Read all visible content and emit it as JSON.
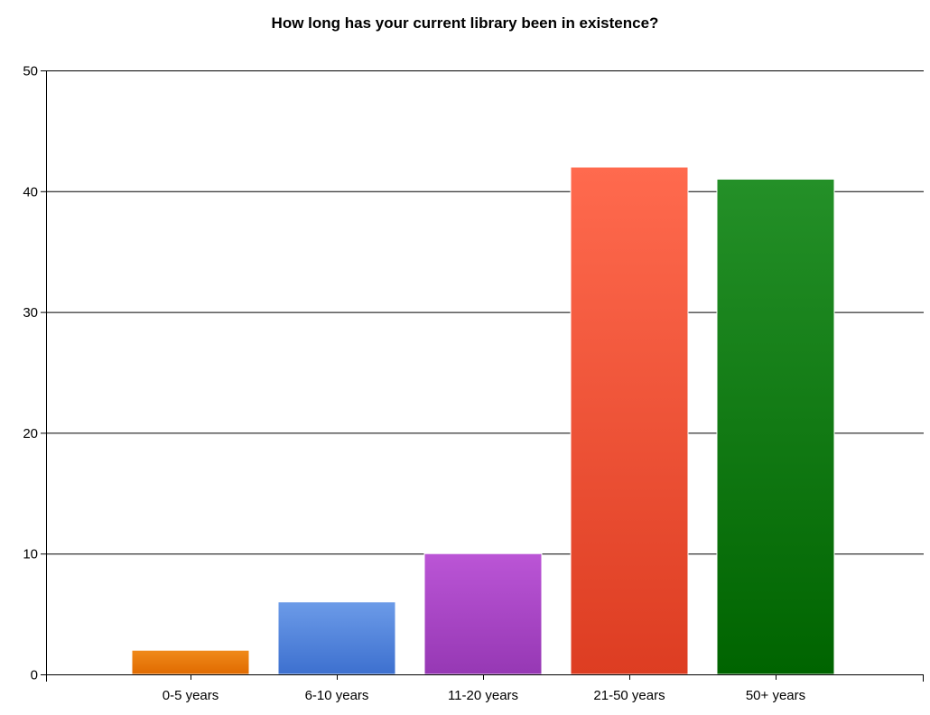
{
  "chart_data": {
    "type": "bar",
    "title": "How long has your current library been in existence?",
    "xlabel": "",
    "ylabel": "",
    "categories": [
      "0-5 years",
      "6-10 years",
      "11-20 years",
      "21-50 years",
      "50+ years"
    ],
    "values": [
      2,
      6,
      10,
      42,
      41
    ],
    "ylim": [
      0,
      50
    ],
    "yticks": [
      0,
      10,
      20,
      30,
      40,
      50
    ],
    "grid": true,
    "legend": "none",
    "bar_colors": [
      {
        "top": "#f08a1a",
        "bottom": "#e06a00"
      },
      {
        "top": "#6c9be8",
        "bottom": "#3d70cf"
      },
      {
        "top": "#bb55d6",
        "bottom": "#9638b4"
      },
      {
        "top": "#ff6a4e",
        "bottom": "#dd3d22"
      },
      {
        "top": "#249028",
        "bottom": "#006400"
      }
    ]
  }
}
